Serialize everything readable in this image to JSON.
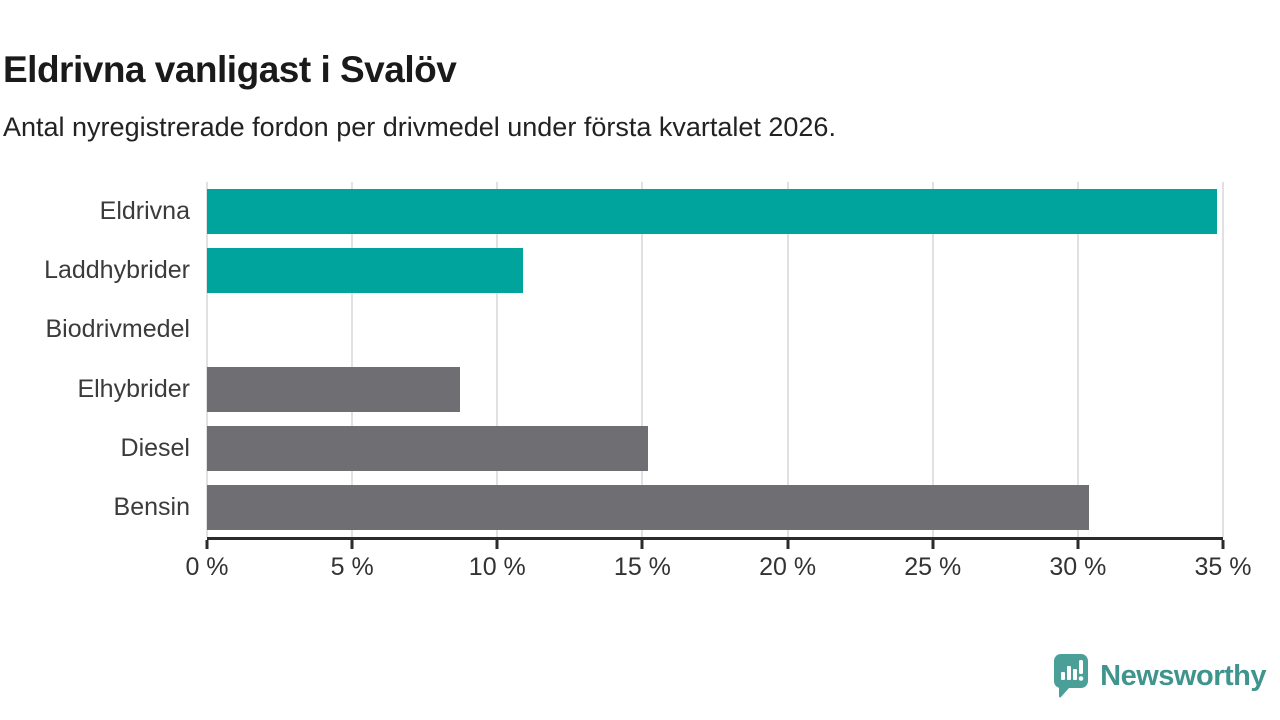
{
  "header": {
    "title": "Eldrivna vanligast i Svalöv",
    "subtitle": "Antal nyregistrerade fordon per drivmedel under första kvartalet 2026."
  },
  "chart_data": {
    "type": "bar",
    "orientation": "horizontal",
    "title": "Eldrivna vanligast i Svalöv",
    "subtitle": "Antal nyregistrerade fordon per drivmedel under första kvartalet 2026.",
    "categories": [
      "Eldrivna",
      "Laddhybrider",
      "Biodrivmedel",
      "Elhybrider",
      "Diesel",
      "Bensin"
    ],
    "values": [
      34.8,
      10.9,
      0,
      8.7,
      15.2,
      30.4
    ],
    "unit": "%",
    "xlim": [
      0,
      35
    ],
    "x_ticks": [
      {
        "value": 0,
        "label": "0 %"
      },
      {
        "value": 5,
        "label": "5 %"
      },
      {
        "value": 10,
        "label": "10 %"
      },
      {
        "value": 15,
        "label": "15 %"
      },
      {
        "value": 20,
        "label": "20 %"
      },
      {
        "value": 25,
        "label": "25 %"
      },
      {
        "value": 30,
        "label": "30 %"
      },
      {
        "value": 35,
        "label": "35 %"
      }
    ],
    "bar_colors": [
      "#00a49c",
      "#00a49c",
      "#6e6e73",
      "#6e6e73",
      "#6e6e73",
      "#6e6e73"
    ],
    "highlight_color": "#00a49c",
    "default_color": "#6e6e73",
    "grid": true,
    "legend": false
  },
  "branding": {
    "logo_text": "Newsworthy",
    "logo_text_color": "#40948e",
    "logo_icon": "bar-chart-speech-bubble-icon",
    "logo_icon_color": "#4a9f99"
  }
}
